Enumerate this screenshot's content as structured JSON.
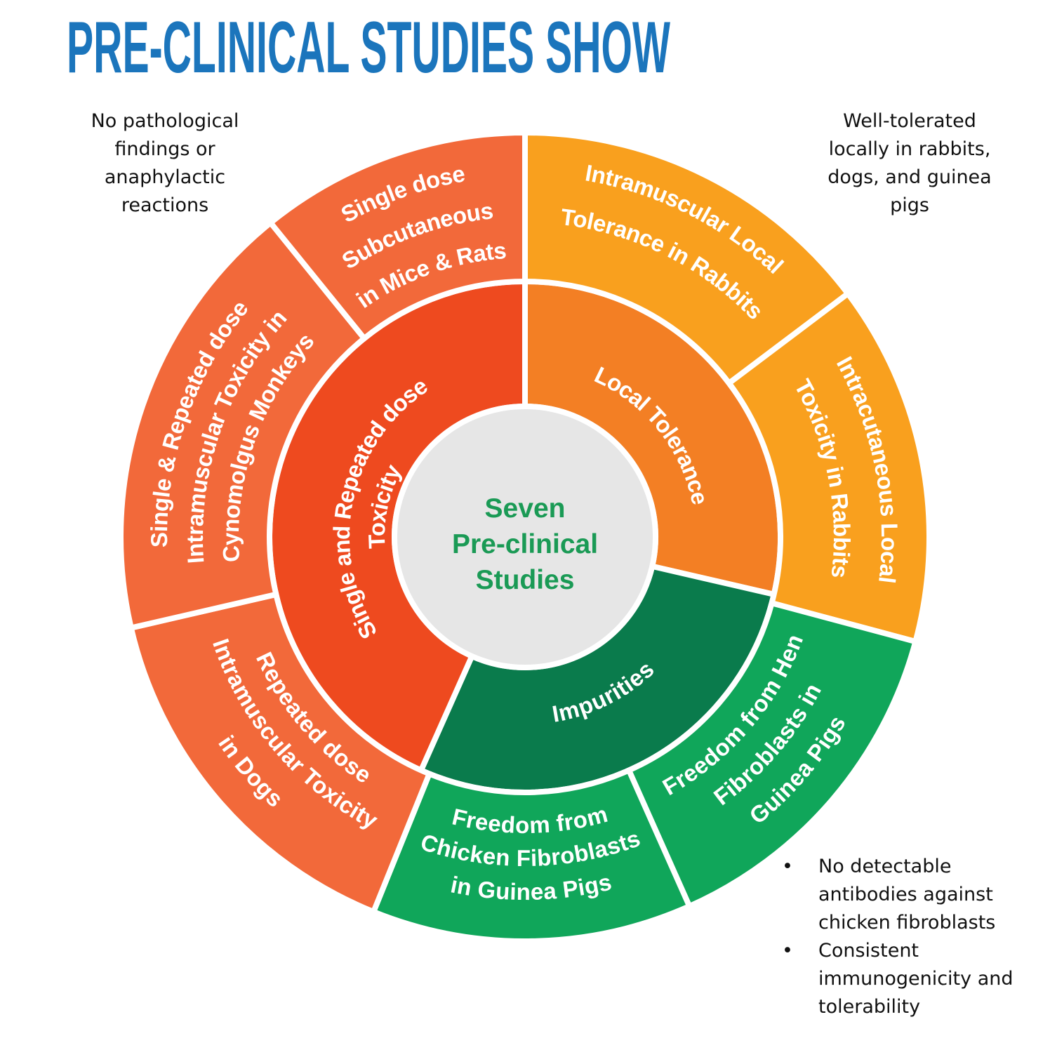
{
  "title": "PRE-CLINICAL STUDIES SHOW",
  "colors": {
    "title": "#1B75BC",
    "center_fill": "#E6E6E6",
    "center_text": "#1A9A55",
    "toxicity_inner": "#EE4A1F",
    "local_tolerance_inner": "#F37F24",
    "impurities_inner": "#0A7B4C",
    "toxicity_outer": "#F2693A",
    "local_tolerance_outer": "#F9A01E",
    "impurities_outer": "#10A65A"
  },
  "center": {
    "lines": [
      "Seven",
      "Pre-clinical",
      "Studies"
    ]
  },
  "inner_ring": [
    {
      "id": "local-tolerance",
      "lines": [
        "Local Tolerance"
      ]
    },
    {
      "id": "impurities",
      "lines": [
        "Impurities"
      ]
    },
    {
      "id": "toxicity",
      "lines": [
        "Single and Repeated dose",
        "Toxicity"
      ]
    }
  ],
  "outer_ring": [
    {
      "id": "rabbits-im",
      "lines": [
        "Intramuscular Local",
        "Tolerance in Rabbits"
      ]
    },
    {
      "id": "rabbits-ic",
      "lines": [
        "Intracutaneous Local",
        "Toxicity in Rabbits"
      ]
    },
    {
      "id": "hen",
      "lines": [
        "Freedom from Hen",
        "Fibroblasts in",
        "Guinea Pigs"
      ]
    },
    {
      "id": "chicken",
      "lines": [
        "Freedom from",
        "Chicken Fibroblasts",
        "in Guinea Pigs"
      ]
    },
    {
      "id": "dogs",
      "lines": [
        "Repeated dose",
        "Intramuscular Toxicity",
        "in Dogs"
      ]
    },
    {
      "id": "monkeys",
      "lines": [
        "Single & Repeated dose",
        "Intramuscular Toxicity in",
        "Cynomolgus Monkeys"
      ]
    },
    {
      "id": "mice",
      "lines": [
        "Single dose",
        "Subcutaneous",
        "in Mice & Rats"
      ]
    }
  ],
  "notes": {
    "top_left": [
      "No pathological",
      "findings or",
      "anaphylactic",
      "reactions"
    ],
    "top_right": [
      "Well-tolerated",
      "locally in rabbits,",
      "dogs, and guinea",
      "pigs"
    ],
    "bottom_right": [
      {
        "bullet": "•",
        "lines": [
          "No detectable",
          "antibodies against",
          "chicken fibroblasts"
        ]
      },
      {
        "bullet": "•",
        "lines": [
          "Consistent",
          "immunogenicity and",
          "tolerability"
        ]
      }
    ]
  }
}
